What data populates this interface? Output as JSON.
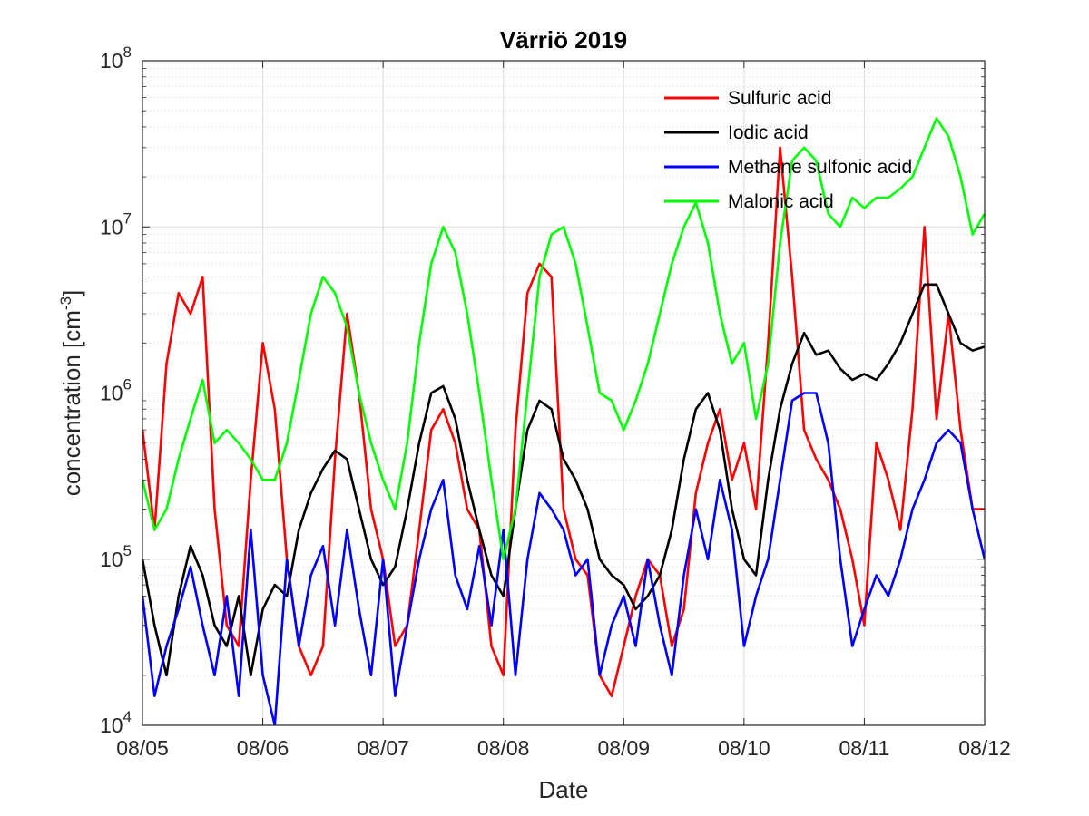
{
  "chart_data": {
    "type": "line",
    "title": "Värriö 2019",
    "xlabel": "Date",
    "ylabel": "concentration [cm",
    "ylabel_unit_exponent": "-3",
    "ylabel_close": "]",
    "yscale": "log",
    "ylim": [
      10000,
      100000000
    ],
    "y_ticks": [
      {
        "base": "10",
        "exp": "4"
      },
      {
        "base": "10",
        "exp": "5"
      },
      {
        "base": "10",
        "exp": "6"
      },
      {
        "base": "10",
        "exp": "7"
      },
      {
        "base": "10",
        "exp": "8"
      }
    ],
    "xlim": [
      "08/05",
      "08/12"
    ],
    "x_ticks": [
      "08/05",
      "08/06",
      "08/07",
      "08/08",
      "08/09",
      "08/10",
      "08/11",
      "08/12"
    ],
    "grid": true,
    "minor_grid": true,
    "legend_position": "top-right",
    "series": [
      {
        "name": "Sulfuric acid",
        "color": "#ff0000",
        "x": [
          "08/05 00:00",
          "08/05 02:24",
          "08/05 04:48",
          "08/05 07:12",
          "08/05 09:36",
          "08/05 12:00",
          "08/05 14:24",
          "08/05 16:48",
          "08/05 19:12",
          "08/05 21:36",
          "08/06 00:00",
          "08/06 02:24",
          "08/06 04:48",
          "08/06 07:12",
          "08/06 09:36",
          "08/06 12:00",
          "08/06 14:24",
          "08/06 16:48",
          "08/06 19:12",
          "08/06 21:36",
          "08/07 00:00",
          "08/07 02:24",
          "08/07 04:48",
          "08/07 07:12",
          "08/07 09:36",
          "08/07 12:00",
          "08/07 14:24",
          "08/07 16:48",
          "08/07 19:12",
          "08/07 21:36",
          "08/08 00:00",
          "08/08 02:24",
          "08/08 04:48",
          "08/08 07:12",
          "08/08 09:36",
          "08/08 12:00",
          "08/08 14:24",
          "08/08 16:48",
          "08/08 19:12",
          "08/08 21:36",
          "08/09 00:00",
          "08/09 02:24",
          "08/09 04:48",
          "08/09 07:12",
          "08/09 09:36",
          "08/09 12:00",
          "08/09 14:24",
          "08/09 16:48",
          "08/09 19:12",
          "08/09 21:36",
          "08/10 00:00",
          "08/10 02:24",
          "08/10 04:48",
          "08/10 07:12",
          "08/10 09:36",
          "08/10 12:00",
          "08/10 14:24",
          "08/10 16:48",
          "08/10 19:12",
          "08/10 21:36",
          "08/11 00:00",
          "08/11 02:24",
          "08/11 04:48",
          "08/11 07:12",
          "08/11 09:36",
          "08/11 12:00",
          "08/11 14:24",
          "08/11 16:48",
          "08/11 19:12",
          "08/11 21:36",
          "08/12 00:00"
        ],
        "y": [
          600000,
          150000,
          1500000,
          4000000,
          3000000,
          5000000,
          200000,
          40000,
          30000,
          300000,
          2000000,
          800000,
          100000,
          30000,
          20000,
          30000,
          400000,
          3000000,
          1000000,
          200000,
          100000,
          30000,
          40000,
          150000,
          600000,
          800000,
          500000,
          200000,
          150000,
          30000,
          20000,
          600000,
          4000000,
          6000000,
          5000000,
          200000,
          100000,
          80000,
          20000,
          15000,
          30000,
          60000,
          100000,
          80000,
          30000,
          50000,
          250000,
          500000,
          800000,
          300000,
          500000,
          200000,
          2000000,
          30000000,
          5000000,
          600000,
          400000,
          300000,
          200000,
          100000,
          40000,
          500000,
          300000,
          150000,
          800000,
          10000000,
          700000,
          3000000,
          600000,
          200000,
          200000
        ]
      },
      {
        "name": "Iodic acid",
        "color": "#000000",
        "x": [
          "08/05 00:00",
          "08/05 02:24",
          "08/05 04:48",
          "08/05 07:12",
          "08/05 09:36",
          "08/05 12:00",
          "08/05 14:24",
          "08/05 16:48",
          "08/05 19:12",
          "08/05 21:36",
          "08/06 00:00",
          "08/06 02:24",
          "08/06 04:48",
          "08/06 07:12",
          "08/06 09:36",
          "08/06 12:00",
          "08/06 14:24",
          "08/06 16:48",
          "08/06 19:12",
          "08/06 21:36",
          "08/07 00:00",
          "08/07 02:24",
          "08/07 04:48",
          "08/07 07:12",
          "08/07 09:36",
          "08/07 12:00",
          "08/07 14:24",
          "08/07 16:48",
          "08/07 19:12",
          "08/07 21:36",
          "08/08 00:00",
          "08/08 02:24",
          "08/08 04:48",
          "08/08 07:12",
          "08/08 09:36",
          "08/08 12:00",
          "08/08 14:24",
          "08/08 16:48",
          "08/08 19:12",
          "08/08 21:36",
          "08/09 00:00",
          "08/09 02:24",
          "08/09 04:48",
          "08/09 07:12",
          "08/09 09:36",
          "08/09 12:00",
          "08/09 14:24",
          "08/09 16:48",
          "08/09 19:12",
          "08/09 21:36",
          "08/10 00:00",
          "08/10 02:24",
          "08/10 04:48",
          "08/10 07:12",
          "08/10 09:36",
          "08/10 12:00",
          "08/10 14:24",
          "08/10 16:48",
          "08/10 19:12",
          "08/10 21:36",
          "08/11 00:00",
          "08/11 02:24",
          "08/11 04:48",
          "08/11 07:12",
          "08/11 09:36",
          "08/11 12:00",
          "08/11 14:24",
          "08/11 16:48",
          "08/11 19:12",
          "08/11 21:36",
          "08/12 00:00"
        ],
        "y": [
          100000,
          40000,
          20000,
          60000,
          120000,
          80000,
          40000,
          30000,
          60000,
          20000,
          50000,
          70000,
          60000,
          150000,
          250000,
          350000,
          450000,
          400000,
          200000,
          100000,
          70000,
          90000,
          200000,
          500000,
          1000000,
          1100000,
          700000,
          300000,
          150000,
          80000,
          60000,
          200000,
          600000,
          900000,
          800000,
          400000,
          300000,
          200000,
          100000,
          80000,
          70000,
          50000,
          60000,
          80000,
          150000,
          400000,
          800000,
          1000000,
          600000,
          200000,
          100000,
          80000,
          300000,
          800000,
          1500000,
          2300000,
          1700000,
          1800000,
          1400000,
          1200000,
          1300000,
          1200000,
          1500000,
          2000000,
          3000000,
          4500000,
          4500000,
          3000000,
          2000000,
          1800000,
          1900000
        ]
      },
      {
        "name": "Methane sulfonic acid",
        "color": "#0000ff",
        "x": [
          "08/05 00:00",
          "08/05 02:24",
          "08/05 04:48",
          "08/05 07:12",
          "08/05 09:36",
          "08/05 12:00",
          "08/05 14:24",
          "08/05 16:48",
          "08/05 19:12",
          "08/05 21:36",
          "08/06 00:00",
          "08/06 02:24",
          "08/06 04:48",
          "08/06 07:12",
          "08/06 09:36",
          "08/06 12:00",
          "08/06 14:24",
          "08/06 16:48",
          "08/06 19:12",
          "08/06 21:36",
          "08/07 00:00",
          "08/07 02:24",
          "08/07 04:48",
          "08/07 07:12",
          "08/07 09:36",
          "08/07 12:00",
          "08/07 14:24",
          "08/07 16:48",
          "08/07 19:12",
          "08/07 21:36",
          "08/08 00:00",
          "08/08 02:24",
          "08/08 04:48",
          "08/08 07:12",
          "08/08 09:36",
          "08/08 12:00",
          "08/08 14:24",
          "08/08 16:48",
          "08/08 19:12",
          "08/08 21:36",
          "08/09 00:00",
          "08/09 02:24",
          "08/09 04:48",
          "08/09 07:12",
          "08/09 09:36",
          "08/09 12:00",
          "08/09 14:24",
          "08/09 16:48",
          "08/09 19:12",
          "08/09 21:36",
          "08/10 00:00",
          "08/10 02:24",
          "08/10 04:48",
          "08/10 07:12",
          "08/10 09:36",
          "08/10 12:00",
          "08/10 14:24",
          "08/10 16:48",
          "08/10 19:12",
          "08/10 21:36",
          "08/11 00:00",
          "08/11 02:24",
          "08/11 04:48",
          "08/11 07:12",
          "08/11 09:36",
          "08/11 12:00",
          "08/11 14:24",
          "08/11 16:48",
          "08/11 19:12",
          "08/11 21:36",
          "08/12 00:00"
        ],
        "y": [
          60000,
          15000,
          30000,
          50000,
          90000,
          40000,
          20000,
          60000,
          15000,
          150000,
          20000,
          10000,
          100000,
          30000,
          80000,
          120000,
          40000,
          150000,
          50000,
          20000,
          100000,
          15000,
          40000,
          100000,
          200000,
          300000,
          80000,
          50000,
          120000,
          40000,
          150000,
          20000,
          100000,
          250000,
          200000,
          150000,
          80000,
          100000,
          20000,
          40000,
          60000,
          30000,
          100000,
          40000,
          20000,
          80000,
          200000,
          100000,
          300000,
          150000,
          30000,
          60000,
          100000,
          300000,
          900000,
          1000000,
          1000000,
          500000,
          100000,
          30000,
          50000,
          80000,
          60000,
          100000,
          200000,
          300000,
          500000,
          600000,
          500000,
          200000,
          100000
        ]
      },
      {
        "name": "Malonic acid",
        "color": "#00ff00",
        "x": [
          "08/05 00:00",
          "08/05 02:24",
          "08/05 04:48",
          "08/05 07:12",
          "08/05 09:36",
          "08/05 12:00",
          "08/05 14:24",
          "08/05 16:48",
          "08/05 19:12",
          "08/05 21:36",
          "08/06 00:00",
          "08/06 02:24",
          "08/06 04:48",
          "08/06 07:12",
          "08/06 09:36",
          "08/06 12:00",
          "08/06 14:24",
          "08/06 16:48",
          "08/06 19:12",
          "08/06 21:36",
          "08/07 00:00",
          "08/07 02:24",
          "08/07 04:48",
          "08/07 07:12",
          "08/07 09:36",
          "08/07 12:00",
          "08/07 14:24",
          "08/07 16:48",
          "08/07 19:12",
          "08/07 21:36",
          "08/08 00:00",
          "08/08 02:24",
          "08/08 04:48",
          "08/08 07:12",
          "08/08 09:36",
          "08/08 12:00",
          "08/08 14:24",
          "08/08 16:48",
          "08/08 19:12",
          "08/08 21:36",
          "08/09 00:00",
          "08/09 02:24",
          "08/09 04:48",
          "08/09 07:12",
          "08/09 09:36",
          "08/09 12:00",
          "08/09 14:24",
          "08/09 16:48",
          "08/09 19:12",
          "08/09 21:36",
          "08/10 00:00",
          "08/10 02:24",
          "08/10 04:48",
          "08/10 07:12",
          "08/10 09:36",
          "08/10 12:00",
          "08/10 14:24",
          "08/10 16:48",
          "08/10 19:12",
          "08/10 21:36",
          "08/11 00:00",
          "08/11 02:24",
          "08/11 04:48",
          "08/11 07:12",
          "08/11 09:36",
          "08/11 12:00",
          "08/11 14:24",
          "08/11 16:48",
          "08/11 19:12",
          "08/11 21:36",
          "08/12 00:00"
        ],
        "y": [
          300000,
          150000,
          200000,
          400000,
          700000,
          1200000,
          500000,
          600000,
          500000,
          400000,
          300000,
          300000,
          500000,
          1200000,
          3000000,
          5000000,
          4000000,
          2500000,
          1000000,
          500000,
          300000,
          200000,
          500000,
          2000000,
          6000000,
          10000000,
          7000000,
          3000000,
          1000000,
          300000,
          100000,
          200000,
          1000000,
          5000000,
          9000000,
          10000000,
          6000000,
          2500000,
          1000000,
          900000,
          600000,
          900000,
          1500000,
          3000000,
          6000000,
          10000000,
          14000000,
          8000000,
          3000000,
          1500000,
          2000000,
          700000,
          1500000,
          8000000,
          25000000,
          30000000,
          25000000,
          12000000,
          10000000,
          15000000,
          13000000,
          15000000,
          15000000,
          17000000,
          20000000,
          30000000,
          45000000,
          35000000,
          20000000,
          9000000,
          12000000
        ]
      }
    ]
  }
}
